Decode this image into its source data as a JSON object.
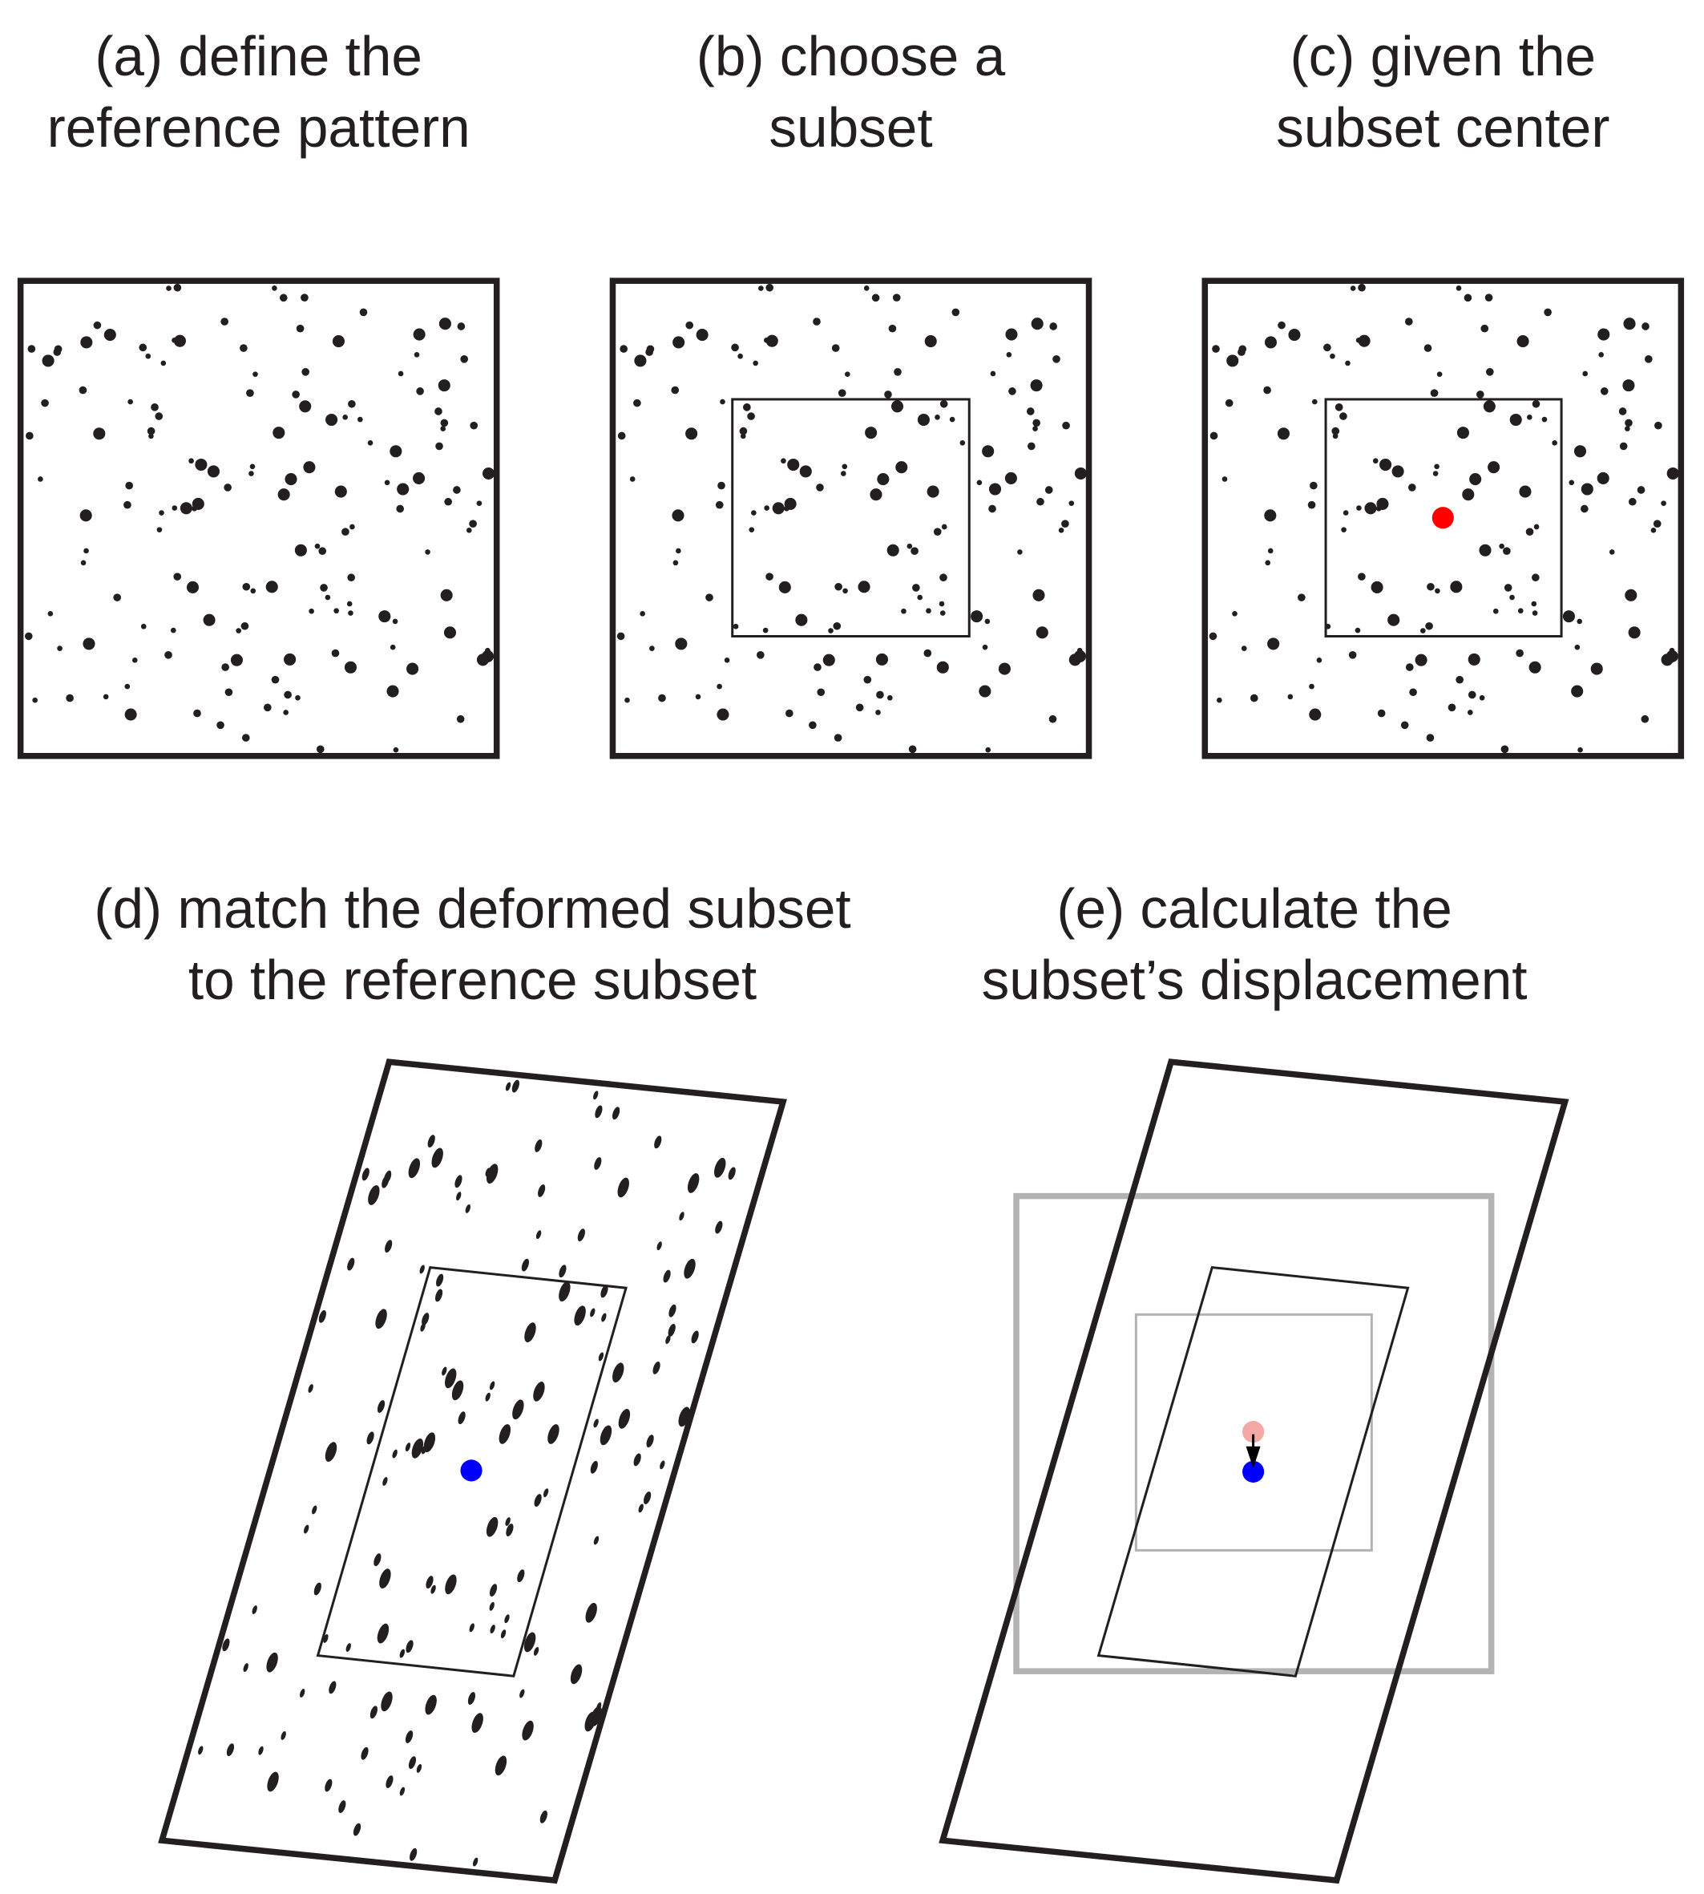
{
  "panels": [
    {
      "id": "a",
      "title_line1": "(a) define the",
      "title_line2": "reference pattern"
    },
    {
      "id": "b",
      "title_line1": "(b) choose a",
      "title_line2": "subset"
    },
    {
      "id": "c",
      "title_line1": "(c) given the",
      "title_line2": "subset center"
    },
    {
      "id": "d",
      "title_line1": "(d) match the deformed subset",
      "title_line2": "to the reference subset"
    },
    {
      "id": "e",
      "title_line1": "(e) calculate the",
      "title_line2": "subset’s displacement"
    }
  ],
  "colors": {
    "ink": "#231f20",
    "reference_center": "#ff0000",
    "deformed_center": "#0000ff",
    "reference_center_faded": "#f4a9a4",
    "reference_outline_faded": "#b3b3b3"
  }
}
